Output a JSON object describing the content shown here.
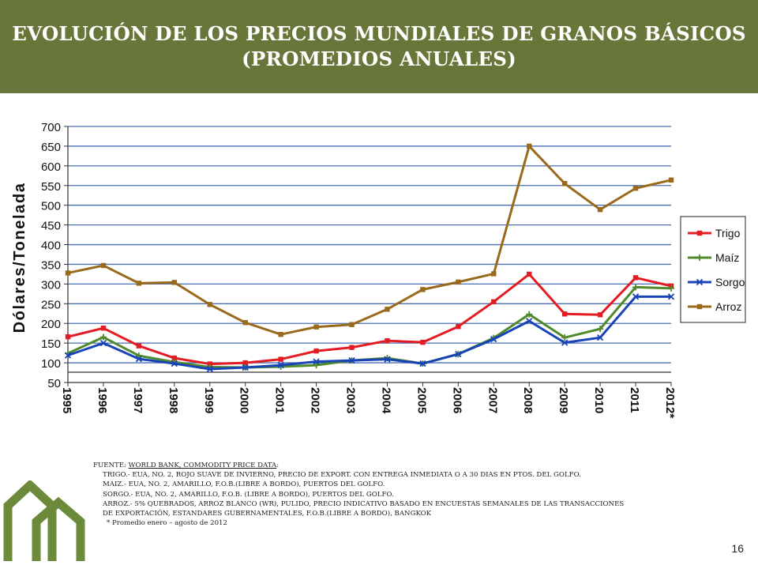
{
  "header": {
    "title_line1": "EVOLUCIÓN DE LOS PRECIOS MUNDIALES DE GRANOS BÁSICOS",
    "title_line2": "(PROMEDIOS ANUALES)"
  },
  "colors": {
    "header_bg": "#69763a",
    "trigo": "#e31c23",
    "maiz": "#4f8a2b",
    "sorgo": "#1844b8",
    "arroz": "#9a6a1c",
    "gridline": "#4a6fb5",
    "logo": "#6b8a3a"
  },
  "chart_data": {
    "type": "line",
    "title": "",
    "xlabel": "",
    "ylabel": "Dólares/Tonelada",
    "ylim": [
      50,
      700
    ],
    "yticks": [
      50,
      100,
      150,
      200,
      250,
      300,
      350,
      400,
      450,
      500,
      550,
      600,
      650,
      700
    ],
    "grid": true,
    "legend_position": "right",
    "categories": [
      "1995",
      "1996",
      "1997",
      "1998",
      "1999",
      "2000",
      "2001",
      "2002",
      "2003",
      "2004",
      "2005",
      "2006",
      "2007",
      "2008",
      "2009",
      "2010",
      "2011",
      "2012*"
    ],
    "series": [
      {
        "name": "Trigo",
        "color": "#e31c23",
        "marker": "square",
        "values": [
          166,
          188,
          143,
          112,
          97,
          100,
          109,
          130,
          139,
          156,
          152,
          192,
          255,
          325,
          224,
          222,
          316,
          295
        ]
      },
      {
        "name": "Maíz",
        "color": "#4f8a2b",
        "marker": "plus",
        "values": [
          124,
          165,
          118,
          102,
          89,
          88,
          90,
          94,
          106,
          112,
          98,
          122,
          163,
          223,
          164,
          186,
          292,
          289
        ]
      },
      {
        "name": "Sorgo",
        "color": "#1844b8",
        "marker": "cross",
        "values": [
          119,
          150,
          110,
          98,
          84,
          88,
          94,
          103,
          106,
          109,
          98,
          122,
          160,
          206,
          151,
          164,
          268,
          268
        ]
      },
      {
        "name": "Arroz",
        "color": "#9a6a1c",
        "marker": "square",
        "values": [
          328,
          347,
          302,
          304,
          248,
          202,
          172,
          191,
          197,
          236,
          286,
          305,
          326,
          650,
          555,
          489,
          543,
          564
        ]
      }
    ]
  },
  "notes": {
    "source_label": "FUENTE: ",
    "source_name": "WORLD BANK, COMMODITY PRICE DATA",
    "source_colon": ":",
    "trigo": "TRIGO.-  EUA, NO. 2, ROJO SUAVE DE INVIERNO,  PRECIO DE EXPORT. CON ENTREGA INMEDIATA  O A 30 DIAS EN PTOS. DEL GOLFO.",
    "maiz": "MAIZ.-    EUA, NO. 2, AMARILLO, F.O.B.(LIBRE A BORDO), PUERTOS DEL GOLFO.",
    "sorgo": "SORGO.- EUA, NO. 2, AMARILLO, F.O.B. (LIBRE A BORDO), PUERTOS DEL GOLFO.",
    "arroz1": "ARROZ.- 5% QUEBRADOS, ARROZ BLANCO (WR),  PULIDO, PRECIO INDICATIVO BASADO  EN  ENCUESTAS SEMANALES DE LAS TRANSACCIONES",
    "arroz2": "DE EXPORTACIÓN, ESTANDARES GUBERNAMENTALES, F.O.B.(LIBRE A BORDO),  BANGKOK",
    "footnote": "* Promedio enero – agosto de 2012"
  },
  "page_number": "16"
}
